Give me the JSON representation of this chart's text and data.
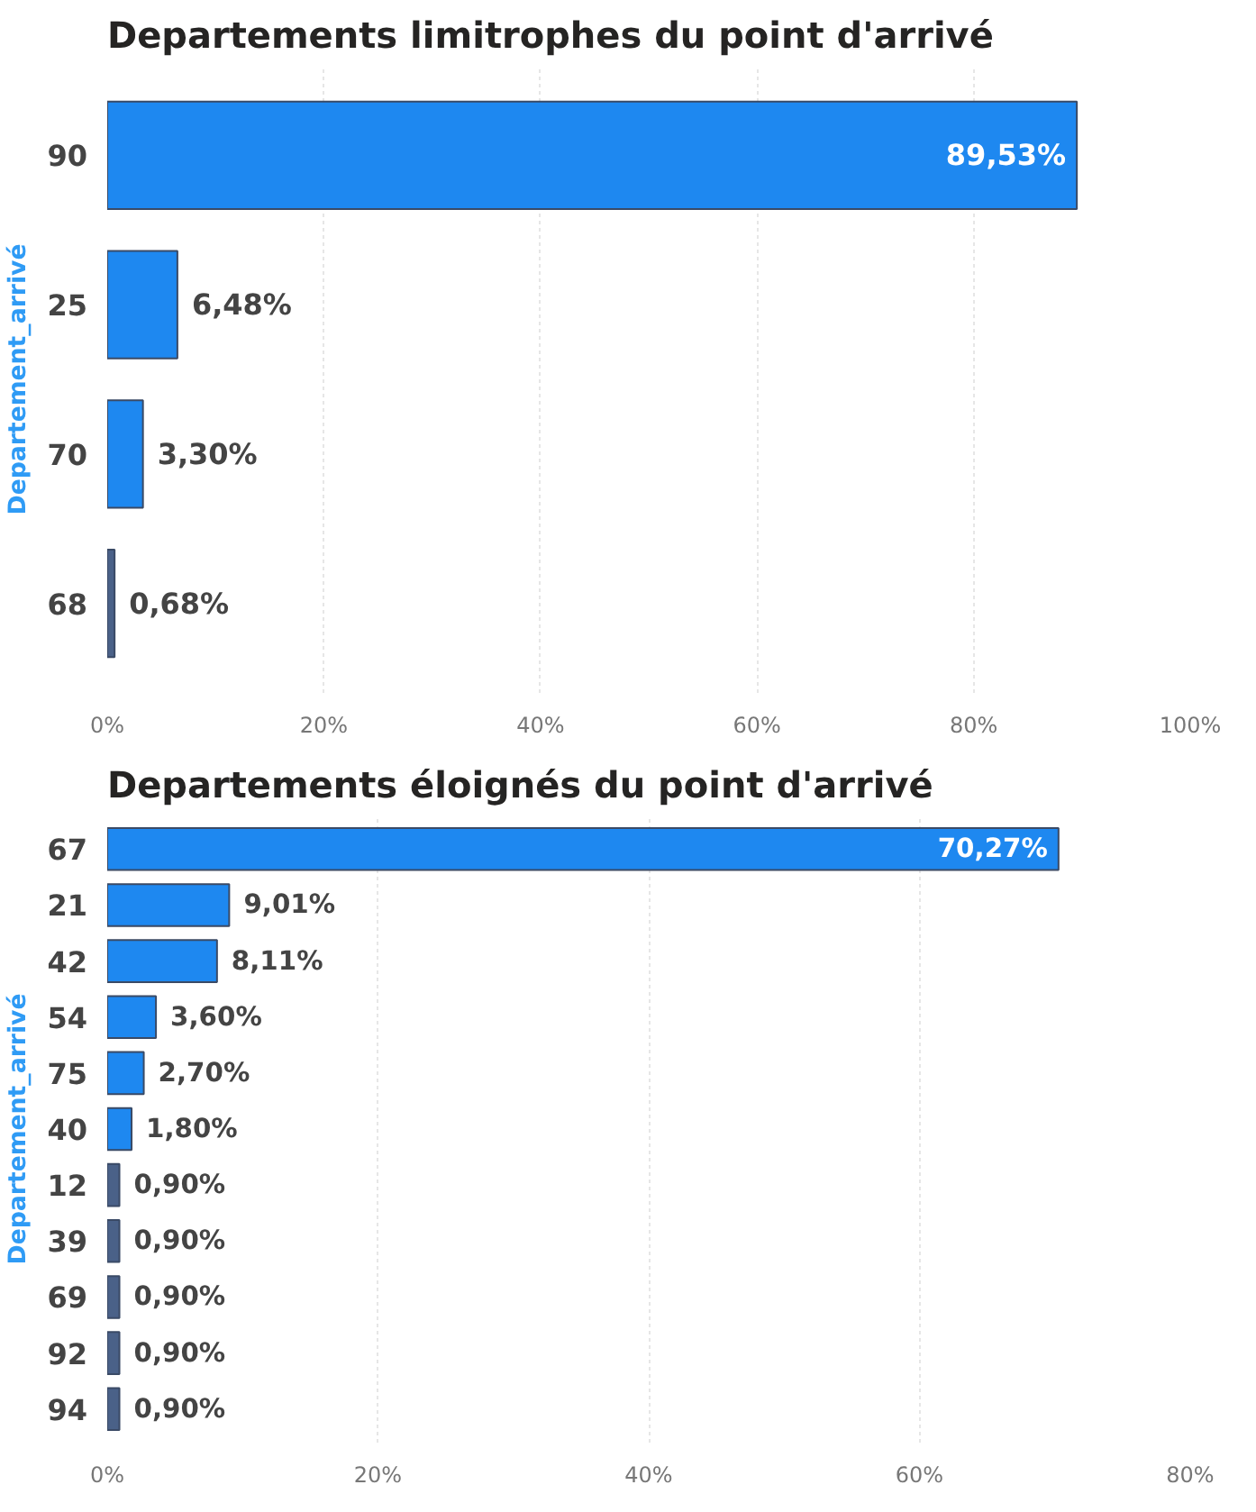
{
  "chart_data": [
    {
      "type": "bar",
      "orientation": "horizontal",
      "title": "Departements limitrophes du point d'arrivé",
      "ylabel": "Departement_arrivé",
      "categories": [
        "90",
        "25",
        "70",
        "68"
      ],
      "values": [
        89.53,
        6.48,
        3.3,
        0.68
      ],
      "colors": [
        "#1e88f0",
        "#1e88f0",
        "#1e88f0",
        "#4a6188"
      ],
      "value_labels": [
        "89,53%",
        "6,48%",
        "3,30%",
        "0,68%"
      ],
      "xlim": [
        0,
        100
      ],
      "xticks": [
        {
          "value": 0,
          "label": "0%"
        },
        {
          "value": 20,
          "label": "20%"
        },
        {
          "value": 40,
          "label": "40%"
        },
        {
          "value": 60,
          "label": "60%"
        },
        {
          "value": 80,
          "label": "80%"
        },
        {
          "value": 100,
          "label": "100%"
        }
      ],
      "grid": "x"
    },
    {
      "type": "bar",
      "orientation": "horizontal",
      "title": "Departements éloignés du point d'arrivé",
      "ylabel": "Departement_arrivé",
      "categories": [
        "67",
        "21",
        "42",
        "54",
        "75",
        "40",
        "12",
        "39",
        "69",
        "92",
        "94"
      ],
      "values": [
        70.27,
        9.01,
        8.11,
        3.6,
        2.7,
        1.8,
        0.9,
        0.9,
        0.9,
        0.9,
        0.9
      ],
      "colors": [
        "#1e88f0",
        "#1e88f0",
        "#1e88f0",
        "#1e88f0",
        "#1e88f0",
        "#1e88f0",
        "#4a6188",
        "#4a6188",
        "#4a6188",
        "#4a6188",
        "#4a6188"
      ],
      "value_labels": [
        "70,27%",
        "9,01%",
        "8,11%",
        "3,60%",
        "2,70%",
        "1,80%",
        "0,90%",
        "0,90%",
        "0,90%",
        "0,90%",
        "0,90%"
      ],
      "xlim": [
        0,
        80
      ],
      "xticks": [
        {
          "value": 0,
          "label": "0%"
        },
        {
          "value": 20,
          "label": "20%"
        },
        {
          "value": 40,
          "label": "40%"
        },
        {
          "value": 60,
          "label": "60%"
        },
        {
          "value": 80,
          "label": "80%"
        }
      ],
      "grid": "x"
    }
  ]
}
